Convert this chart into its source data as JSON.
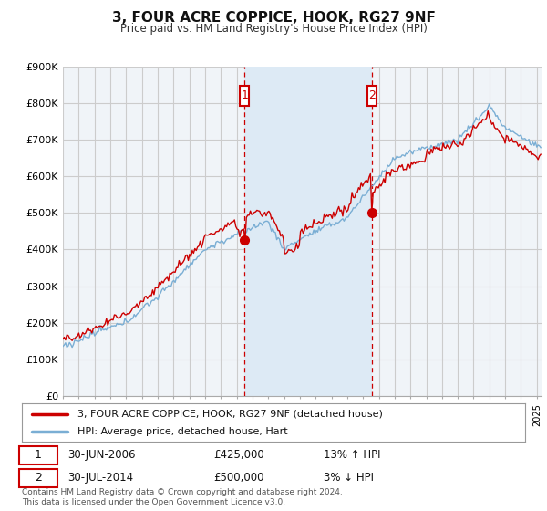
{
  "title": "3, FOUR ACRE COPPICE, HOOK, RG27 9NF",
  "subtitle": "Price paid vs. HM Land Registry's House Price Index (HPI)",
  "ylim": [
    0,
    900000
  ],
  "xlim_start": 1995.0,
  "xlim_end": 2025.3,
  "bg_color": "#f0f4f8",
  "grid_color": "#cccccc",
  "red_line_color": "#cc0000",
  "blue_line_color": "#7aaed4",
  "shade_color": "#ddeaf5",
  "sale1_x": 2006.5,
  "sale1_y": 425000,
  "sale2_x": 2014.58,
  "sale2_y": 500000,
  "sale1_label": "30-JUN-2006",
  "sale1_price": "£425,000",
  "sale1_hpi": "13% ↑ HPI",
  "sale2_label": "30-JUL-2014",
  "sale2_price": "£500,000",
  "sale2_hpi": "3% ↓ HPI",
  "legend_line1": "3, FOUR ACRE COPPICE, HOOK, RG27 9NF (detached house)",
  "legend_line2": "HPI: Average price, detached house, Hart",
  "footnote": "Contains HM Land Registry data © Crown copyright and database right 2024.\nThis data is licensed under the Open Government Licence v3.0.",
  "shade_x1": 2006.5,
  "shade_x2": 2014.58
}
